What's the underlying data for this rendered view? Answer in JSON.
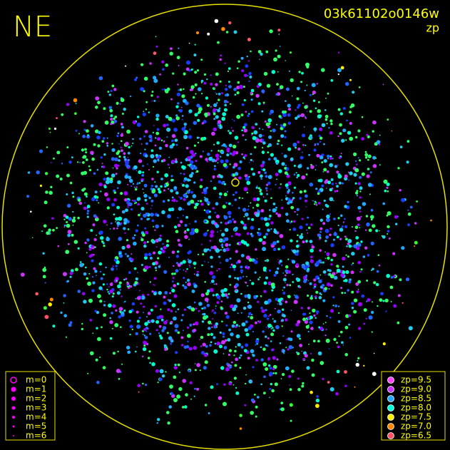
{
  "corner_label": "NE",
  "header": {
    "title": "03k61102o0146w",
    "subtitle": "zp"
  },
  "magnitude_legend": {
    "color": "#ff00ff",
    "items": [
      "m=0",
      "m=1",
      "m=2",
      "m=3",
      "m=4",
      "m=5",
      "m=6"
    ]
  },
  "zp_legend": {
    "items": [
      {
        "label": "zp=9.5",
        "color": "#ff44ff"
      },
      {
        "label": "zp=9.0",
        "color": "#cc33ff"
      },
      {
        "label": "zp=8.5",
        "color": "#22aaff"
      },
      {
        "label": "zp=8.0",
        "color": "#00ffdd"
      },
      {
        "label": "zp=7.5",
        "color": "#ffee00"
      },
      {
        "label": "zp=7.0",
        "color": "#ff8800"
      },
      {
        "label": "zp=6.5",
        "color": "#ff5566"
      }
    ]
  }
}
